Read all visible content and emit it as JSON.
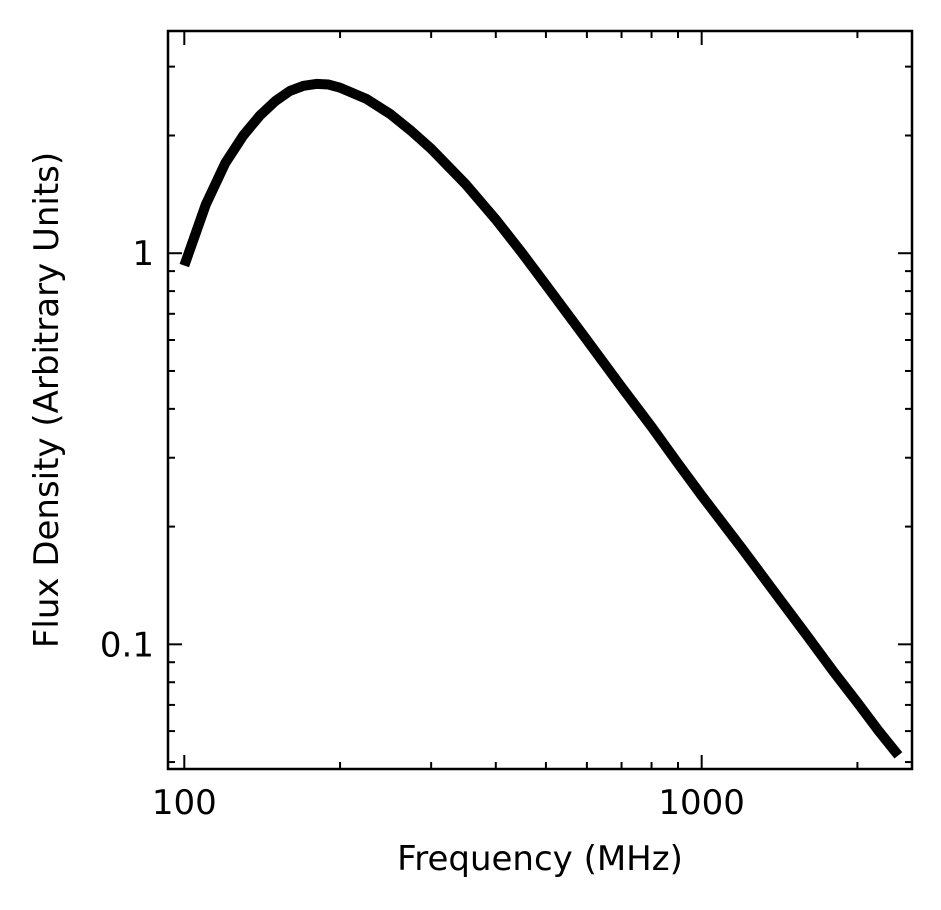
{
  "chart_data": {
    "type": "line",
    "title": "",
    "xlabel": "Frequency (MHz)",
    "ylabel": "Flux Density (Arbitrary Units)",
    "x_scale": "log",
    "y_scale": "log",
    "xlim": [
      93,
      2550
    ],
    "ylim": [
      0.048,
      3.7
    ],
    "grid": false,
    "legend": "none",
    "x_ticks": [
      {
        "value": 100,
        "label": "100"
      },
      {
        "value": 1000,
        "label": "1000"
      }
    ],
    "y_ticks": [
      {
        "value": 0.1,
        "label": "0.1"
      },
      {
        "value": 1,
        "label": "1"
      }
    ],
    "series": [
      {
        "color": "#000000",
        "x": [
          100,
          110,
          120,
          130,
          140,
          150,
          160,
          170,
          180,
          190,
          200,
          225,
          250,
          275,
          300,
          350,
          400,
          450,
          500,
          600,
          700,
          800,
          900,
          1000,
          1200,
          1400,
          1600,
          1800,
          2000,
          2200,
          2400
        ],
        "y": [
          0.93,
          1.33,
          1.7,
          2.0,
          2.25,
          2.45,
          2.6,
          2.68,
          2.71,
          2.7,
          2.65,
          2.48,
          2.27,
          2.05,
          1.85,
          1.5,
          1.22,
          1.0,
          0.83,
          0.6,
          0.455,
          0.36,
          0.29,
          0.24,
          0.175,
          0.133,
          0.105,
          0.085,
          0.071,
          0.06,
          0.052
        ]
      }
    ]
  }
}
